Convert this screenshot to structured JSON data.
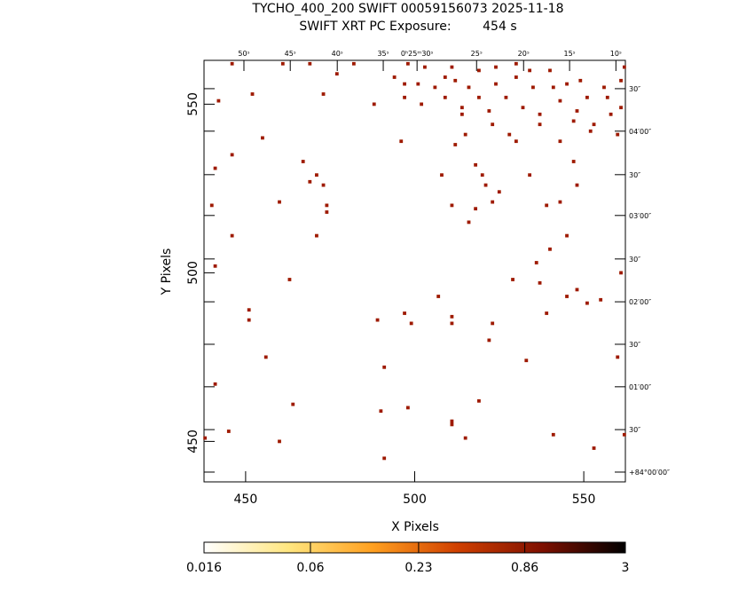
{
  "chart_data": {
    "type": "image-scatter",
    "title": "TYCHO_400_200 SWIFT 00059156073 2025-11-18",
    "subtitle": "SWIFT XRT PC Exposure:        454 s",
    "x_label": "X Pixels",
    "y_label": "Y Pixels",
    "xlim": [
      437.7,
      562.3
    ],
    "ylim": [
      438,
      563
    ],
    "xticks": [
      450,
      500,
      550
    ],
    "yticks": [
      450,
      500,
      550
    ],
    "top_ticks": [
      {
        "value": 449.5,
        "label": "50ˢ"
      },
      {
        "value": 463.2,
        "label": "45ˢ"
      },
      {
        "value": 477.1,
        "label": "40ˢ"
      },
      {
        "value": 490.7,
        "label": "35ˢ"
      },
      {
        "value": 500.7,
        "label": "0ʰ25ᵐ30ˢ"
      },
      {
        "value": 518.3,
        "label": "25ˢ"
      },
      {
        "value": 532.2,
        "label": "20ˢ"
      },
      {
        "value": 545.8,
        "label": "15ˢ"
      },
      {
        "value": 559.5,
        "label": "10ˢ"
      }
    ],
    "right_ticks": [
      {
        "value": 554.6,
        "label": "30″"
      },
      {
        "value": 542.0,
        "label": "04′00″"
      },
      {
        "value": 529.1,
        "label": "30″"
      },
      {
        "value": 517.0,
        "label": "03′00″"
      },
      {
        "value": 504.1,
        "label": "30″"
      },
      {
        "value": 491.4,
        "label": "02′00″"
      },
      {
        "value": 478.8,
        "label": "30″"
      },
      {
        "value": 466.2,
        "label": "01′00″"
      },
      {
        "value": 453.5,
        "label": "30″"
      },
      {
        "value": 440.9,
        "label": "+84°00′00″"
      }
    ],
    "series": [
      {
        "color": "#9e1a00",
        "x": [
          442,
          452,
          455,
          446,
          441,
          467,
          471,
          469,
          473,
          440,
          460,
          474,
          474,
          446,
          471,
          441,
          463,
          451,
          451,
          489,
          497,
          499,
          511,
          511,
          523,
          507,
          522,
          456,
          491,
          533,
          441,
          464,
          490,
          498,
          519,
          511,
          511,
          445,
          541,
          515,
          460,
          491,
          553,
          562,
          438,
          560,
          561,
          548,
          551,
          555,
          539,
          545,
          537,
          529,
          536,
          540,
          545,
          516,
          518,
          523,
          525,
          521,
          520,
          518,
          511,
          512,
          508,
          496,
          534,
          539,
          543,
          548,
          547,
          543,
          530,
          488,
          473,
          494,
          497,
          502,
          509,
          516,
          512,
          519,
          524,
          530,
          535,
          540,
          545,
          551,
          556,
          561,
          558,
          553,
          548,
          543,
          537,
          532,
          527,
          522,
          514,
          509,
          503,
          498,
          482,
          477,
          469,
          461,
          446,
          561,
          560,
          552,
          547,
          523,
          515,
          528,
          537,
          557,
          549,
          541,
          534,
          530,
          524,
          519,
          514,
          511,
          506,
          501,
          497,
          562
        ],
        "y": [
          551,
          553,
          540,
          535,
          531,
          533,
          529,
          527,
          526,
          520,
          521,
          520,
          518,
          511,
          511,
          502,
          498,
          489,
          486,
          486,
          488,
          485,
          487,
          485,
          485,
          493,
          480,
          475,
          472,
          474,
          467,
          461,
          459,
          460,
          462,
          456,
          455,
          453,
          452,
          451,
          450,
          445,
          448,
          452,
          451,
          475,
          500,
          495,
          491,
          492,
          488,
          493,
          497,
          498,
          503,
          507,
          511,
          515,
          519,
          521,
          524,
          526,
          529,
          532,
          520,
          538,
          529,
          539,
          529,
          520,
          521,
          526,
          533,
          539,
          539,
          550,
          553,
          558,
          552,
          550,
          552,
          555,
          557,
          560,
          556,
          558,
          555,
          560,
          556,
          552,
          555,
          557,
          547,
          544,
          548,
          551,
          547,
          549,
          552,
          548,
          547,
          558,
          561,
          562,
          562,
          559,
          562,
          562,
          562,
          549,
          541,
          542,
          545,
          544,
          541,
          541,
          544,
          552,
          557,
          555,
          560,
          562,
          561,
          552,
          549,
          561,
          555,
          556,
          556,
          561
        ]
      }
    ],
    "colorbar": {
      "lim": [
        0.016,
        3
      ],
      "ticks": [
        0.016,
        0.06,
        0.23,
        0.86,
        3
      ],
      "log": true,
      "colors": [
        "#ffffff",
        "#ffe680",
        "#ffa020",
        "#d04000",
        "#801000",
        "#000000"
      ]
    }
  }
}
